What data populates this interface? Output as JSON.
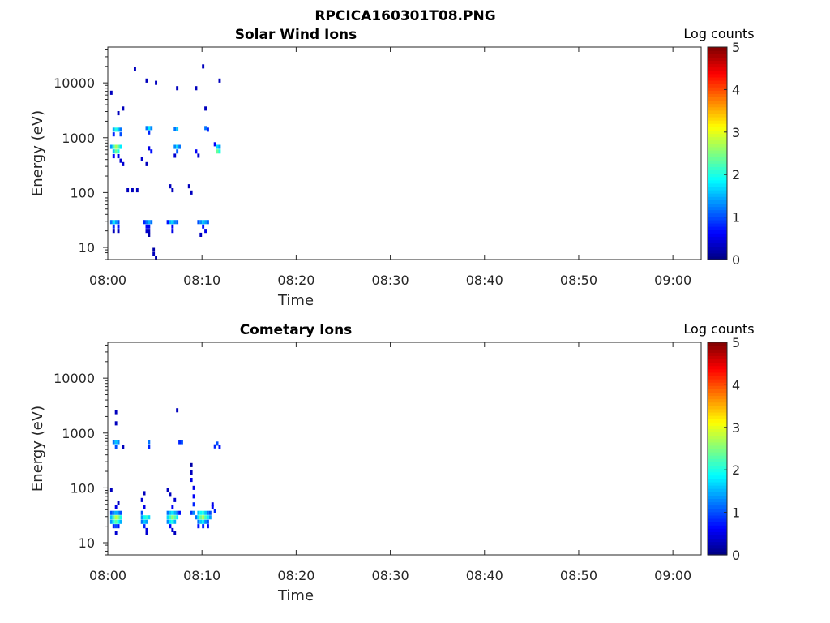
{
  "figure": {
    "title": "RPCICA160301T08.PNG"
  },
  "chart_data": [
    {
      "type": "heatmap",
      "title": "Solar Wind Ions",
      "xlabel": "Time",
      "ylabel": "Energy (eV)",
      "x_ticks": [
        "08:00",
        "08:10",
        "08:20",
        "08:30",
        "08:40",
        "08:50",
        "09:00"
      ],
      "x_range": [
        "08:00",
        "09:03"
      ],
      "y_scale": "log",
      "y_ticks": [
        10,
        100,
        1000,
        10000
      ],
      "y_range": [
        6,
        45000
      ],
      "colorbar": {
        "label": "Log counts",
        "ticks": [
          0,
          1,
          2,
          3,
          4,
          5
        ],
        "range": [
          0,
          5
        ]
      },
      "cells": [
        [
          "08:00:15",
          29,
          1.2
        ],
        [
          "08:00:30",
          29,
          1.8
        ],
        [
          "08:00:45",
          29,
          1.4
        ],
        [
          "08:01:00",
          29,
          1.0
        ],
        [
          "08:00:30",
          24,
          0.8
        ],
        [
          "08:01:00",
          24,
          0.7
        ],
        [
          "08:00:30",
          20,
          0.3
        ],
        [
          "08:01:00",
          20,
          0.3
        ],
        [
          "08:00:30",
          1400,
          1.5
        ],
        [
          "08:00:45",
          1400,
          2.0
        ],
        [
          "08:01:00",
          1400,
          1.6
        ],
        [
          "08:01:15",
          1400,
          1.2
        ],
        [
          "08:00:30",
          1150,
          0.8
        ],
        [
          "08:01:15",
          1150,
          1.0
        ],
        [
          "08:00:15",
          680,
          1.4
        ],
        [
          "08:00:30",
          680,
          2.2
        ],
        [
          "08:00:45",
          680,
          2.7
        ],
        [
          "08:01:00",
          680,
          2.3
        ],
        [
          "08:01:15",
          680,
          1.8
        ],
        [
          "08:00:30",
          560,
          1.6
        ],
        [
          "08:00:45",
          560,
          2.4
        ],
        [
          "08:01:00",
          560,
          2.0
        ],
        [
          "08:00:30",
          460,
          0.6
        ],
        [
          "08:01:00",
          460,
          0.5
        ],
        [
          "08:01:15",
          380,
          0.4
        ],
        [
          "08:01:30",
          330,
          0.4
        ],
        [
          "08:00:15",
          6600,
          0.3
        ],
        [
          "08:01:00",
          2800,
          0.3
        ],
        [
          "08:01:30",
          3400,
          0.3
        ],
        [
          "08:03:45",
          29,
          0.8
        ],
        [
          "08:04:00",
          29,
          1.2
        ],
        [
          "08:04:15",
          29,
          1.5
        ],
        [
          "08:04:30",
          29,
          1.2
        ],
        [
          "08:04:00",
          24,
          0.6
        ],
        [
          "08:04:15",
          24,
          0.5
        ],
        [
          "08:04:00",
          20,
          0.4
        ],
        [
          "08:04:15",
          20,
          0.3
        ],
        [
          "08:04:15",
          17,
          0.2
        ],
        [
          "08:04:00",
          1500,
          1.2
        ],
        [
          "08:04:15",
          1500,
          1.8
        ],
        [
          "08:04:30",
          1500,
          1.3
        ],
        [
          "08:04:15",
          1250,
          0.8
        ],
        [
          "08:04:15",
          640,
          0.5
        ],
        [
          "08:04:30",
          560,
          0.7
        ],
        [
          "08:03:30",
          410,
          0.4
        ],
        [
          "08:04:00",
          330,
          0.3
        ],
        [
          "08:04:45",
          9,
          0.2
        ],
        [
          "08:04:45",
          7.5,
          0.3
        ],
        [
          "08:05:00",
          6.5,
          0.2
        ],
        [
          "08:02:00",
          110,
          0.3
        ],
        [
          "08:02:30",
          110,
          0.3
        ],
        [
          "08:03:00",
          110,
          0.3
        ],
        [
          "08:02:45",
          18000,
          0.3
        ],
        [
          "08:04:00",
          11000,
          0.3
        ],
        [
          "08:05:00",
          10000,
          0.3
        ],
        [
          "08:06:15",
          29,
          0.7
        ],
        [
          "08:06:30",
          29,
          1.5
        ],
        [
          "08:06:45",
          29,
          1.7
        ],
        [
          "08:07:00",
          29,
          1.3
        ],
        [
          "08:07:15",
          29,
          1.1
        ],
        [
          "08:06:45",
          24,
          0.6
        ],
        [
          "08:06:45",
          20,
          0.5
        ],
        [
          "08:07:00",
          1450,
          1.2
        ],
        [
          "08:07:15",
          1450,
          1.6
        ],
        [
          "08:07:00",
          680,
          1.3
        ],
        [
          "08:07:15",
          680,
          1.7
        ],
        [
          "08:07:30",
          680,
          1.2
        ],
        [
          "08:07:15",
          560,
          1.1
        ],
        [
          "08:07:00",
          470,
          0.4
        ],
        [
          "08:06:30",
          130,
          0.3
        ],
        [
          "08:06:45",
          110,
          0.3
        ],
        [
          "08:07:15",
          8000,
          0.3
        ],
        [
          "08:09:30",
          29,
          1.0
        ],
        [
          "08:09:45",
          29,
          1.3
        ],
        [
          "08:10:00",
          29,
          1.6
        ],
        [
          "08:10:15",
          29,
          1.4
        ],
        [
          "08:10:30",
          29,
          1.1
        ],
        [
          "08:10:00",
          24,
          0.7
        ],
        [
          "08:10:15",
          20,
          0.5
        ],
        [
          "08:09:45",
          17,
          0.3
        ],
        [
          "08:10:15",
          1500,
          1.2
        ],
        [
          "08:10:30",
          1400,
          0.8
        ],
        [
          "08:10:15",
          3400,
          0.3
        ],
        [
          "08:11:30",
          680,
          1.7
        ],
        [
          "08:11:45",
          680,
          1.4
        ],
        [
          "08:11:30",
          560,
          2.4
        ],
        [
          "08:11:45",
          560,
          2.0
        ],
        [
          "08:11:15",
          760,
          0.6
        ],
        [
          "08:09:15",
          560,
          0.6
        ],
        [
          "08:09:30",
          470,
          0.4
        ],
        [
          "08:08:30",
          130,
          0.3
        ],
        [
          "08:08:45",
          100,
          0.3
        ],
        [
          "08:11:45",
          11000,
          0.3
        ],
        [
          "08:10:00",
          20000,
          0.3
        ],
        [
          "08:09:15",
          8000,
          0.3
        ]
      ]
    },
    {
      "type": "heatmap",
      "title": "Cometary Ions",
      "xlabel": "Time",
      "ylabel": "Energy (eV)",
      "x_ticks": [
        "08:00",
        "08:10",
        "08:20",
        "08:30",
        "08:40",
        "08:50",
        "09:00"
      ],
      "x_range": [
        "08:00",
        "09:03"
      ],
      "y_scale": "log",
      "y_ticks": [
        10,
        100,
        1000,
        10000
      ],
      "y_range": [
        6,
        45000
      ],
      "colorbar": {
        "label": "Log counts",
        "ticks": [
          0,
          1,
          2,
          3,
          4,
          5
        ],
        "range": [
          0,
          5
        ]
      },
      "cells": [
        [
          "08:00:15",
          35,
          1.0
        ],
        [
          "08:00:30",
          35,
          1.3
        ],
        [
          "08:00:45",
          35,
          1.5
        ],
        [
          "08:01:00",
          35,
          1.3
        ],
        [
          "08:01:15",
          35,
          1.0
        ],
        [
          "08:00:15",
          29,
          1.6
        ],
        [
          "08:00:30",
          29,
          2.3
        ],
        [
          "08:00:45",
          29,
          2.8
        ],
        [
          "08:01:00",
          29,
          2.5
        ],
        [
          "08:01:15",
          29,
          2.0
        ],
        [
          "08:00:15",
          24,
          1.4
        ],
        [
          "08:00:30",
          24,
          2.0
        ],
        [
          "08:00:45",
          24,
          2.3
        ],
        [
          "08:01:00",
          24,
          1.9
        ],
        [
          "08:01:15",
          24,
          1.5
        ],
        [
          "08:00:30",
          20,
          0.8
        ],
        [
          "08:00:45",
          20,
          1.0
        ],
        [
          "08:01:00",
          20,
          0.7
        ],
        [
          "08:00:45",
          15,
          0.4
        ],
        [
          "08:00:45",
          44,
          0.5
        ],
        [
          "08:01:00",
          53,
          0.3
        ],
        [
          "08:00:30",
          680,
          1.2
        ],
        [
          "08:00:45",
          680,
          1.6
        ],
        [
          "08:01:00",
          680,
          1.3
        ],
        [
          "08:00:45",
          560,
          1.0
        ],
        [
          "08:00:45",
          1500,
          0.3
        ],
        [
          "08:00:45",
          2400,
          0.3
        ],
        [
          "08:01:30",
          560,
          0.3
        ],
        [
          "08:00:15",
          90,
          0.3
        ],
        [
          "08:03:30",
          29,
          1.4
        ],
        [
          "08:03:45",
          29,
          1.9
        ],
        [
          "08:04:00",
          29,
          2.1
        ],
        [
          "08:04:15",
          29,
          1.7
        ],
        [
          "08:03:30",
          24,
          1.2
        ],
        [
          "08:03:45",
          24,
          1.6
        ],
        [
          "08:04:00",
          24,
          1.4
        ],
        [
          "08:03:45",
          20,
          0.8
        ],
        [
          "08:04:00",
          17,
          0.5
        ],
        [
          "08:04:00",
          15,
          0.4
        ],
        [
          "08:03:30",
          35,
          1.0
        ],
        [
          "08:03:45",
          44,
          0.5
        ],
        [
          "08:03:30",
          60,
          0.4
        ],
        [
          "08:03:45",
          80,
          0.3
        ],
        [
          "08:04:15",
          680,
          1.2
        ],
        [
          "08:04:15",
          560,
          0.8
        ],
        [
          "08:06:15",
          35,
          1.2
        ],
        [
          "08:06:30",
          35,
          1.6
        ],
        [
          "08:06:45",
          35,
          1.8
        ],
        [
          "08:07:00",
          35,
          1.5
        ],
        [
          "08:07:15",
          35,
          1.2
        ],
        [
          "08:06:15",
          29,
          1.7
        ],
        [
          "08:06:30",
          29,
          2.2
        ],
        [
          "08:06:45",
          29,
          2.6
        ],
        [
          "08:07:00",
          29,
          2.3
        ],
        [
          "08:07:15",
          29,
          1.8
        ],
        [
          "08:06:15",
          24,
          1.3
        ],
        [
          "08:06:30",
          24,
          1.8
        ],
        [
          "08:06:45",
          24,
          2.0
        ],
        [
          "08:07:00",
          24,
          1.5
        ],
        [
          "08:06:30",
          20,
          0.6
        ],
        [
          "08:06:45",
          17,
          0.4
        ],
        [
          "08:07:00",
          15,
          0.3
        ],
        [
          "08:06:45",
          44,
          0.6
        ],
        [
          "08:07:00",
          60,
          0.4
        ],
        [
          "08:06:30",
          75,
          0.3
        ],
        [
          "08:06:15",
          90,
          0.3
        ],
        [
          "08:07:30",
          35,
          0.7
        ],
        [
          "08:07:30",
          680,
          0.8
        ],
        [
          "08:07:45",
          680,
          1.0
        ],
        [
          "08:07:15",
          2600,
          0.3
        ],
        [
          "08:08:45",
          35,
          0.9
        ],
        [
          "08:09:00",
          35,
          1.3
        ],
        [
          "08:09:30",
          35,
          1.6
        ],
        [
          "08:09:45",
          35,
          1.9
        ],
        [
          "08:10:00",
          35,
          2.0
        ],
        [
          "08:10:15",
          35,
          1.6
        ],
        [
          "08:10:30",
          35,
          1.2
        ],
        [
          "08:10:45",
          35,
          1.0
        ],
        [
          "08:11:15",
          38,
          0.8
        ],
        [
          "08:09:15",
          29,
          1.2
        ],
        [
          "08:09:30",
          29,
          1.8
        ],
        [
          "08:09:45",
          29,
          2.4
        ],
        [
          "08:10:00",
          29,
          2.7
        ],
        [
          "08:10:15",
          29,
          2.2
        ],
        [
          "08:10:30",
          29,
          1.8
        ],
        [
          "08:10:45",
          29,
          1.4
        ],
        [
          "08:09:30",
          24,
          1.2
        ],
        [
          "08:09:45",
          24,
          1.6
        ],
        [
          "08:10:00",
          24,
          1.8
        ],
        [
          "08:10:15",
          24,
          1.3
        ],
        [
          "08:10:30",
          24,
          1.0
        ],
        [
          "08:09:30",
          20,
          0.7
        ],
        [
          "08:10:00",
          20,
          0.8
        ],
        [
          "08:10:30",
          20,
          0.6
        ],
        [
          "08:09:00",
          50,
          0.8
        ],
        [
          "08:09:00",
          70,
          0.6
        ],
        [
          "08:09:00",
          100,
          0.5
        ],
        [
          "08:08:45",
          140,
          0.5
        ],
        [
          "08:08:45",
          190,
          0.3
        ],
        [
          "08:08:45",
          260,
          0.2
        ],
        [
          "08:11:00",
          50,
          0.5
        ],
        [
          "08:11:00",
          44,
          0.6
        ],
        [
          "08:11:15",
          570,
          0.8
        ],
        [
          "08:11:30",
          640,
          1.0
        ],
        [
          "08:11:45",
          560,
          0.7
        ]
      ]
    }
  ]
}
